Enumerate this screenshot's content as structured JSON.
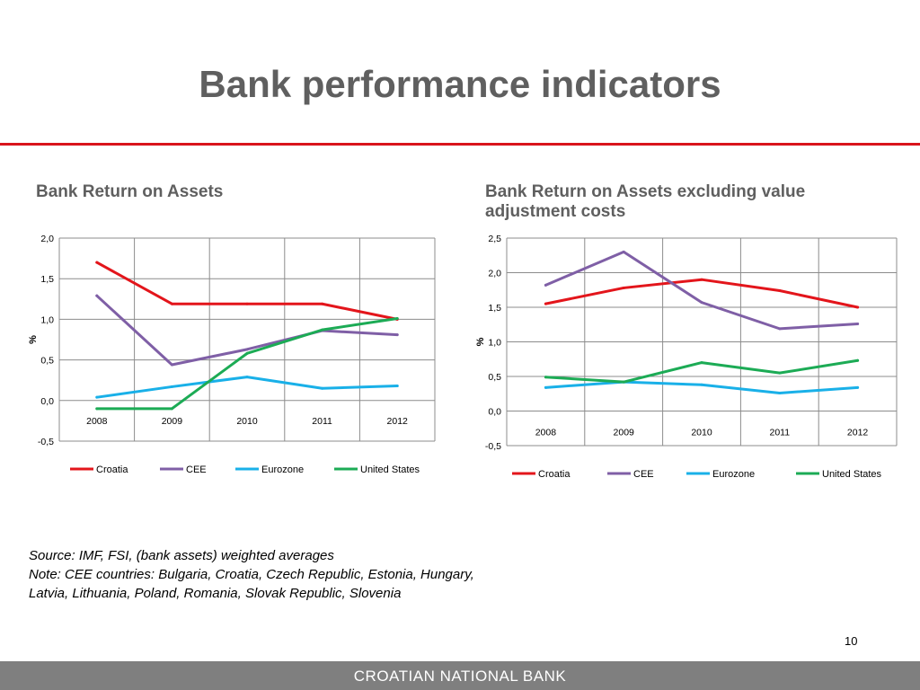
{
  "slide": {
    "title": "Bank performance indicators",
    "page_number": "10",
    "footer": "CROATIAN NATIONAL BANK",
    "notes": [
      "Source: IMF, FSI, (bank assets) weighted averages",
      "Note: CEE countries: Bulgaria, Croatia, Czech Republic, Estonia, Hungary, Latvia, Lithuania, Poland, Romania, Slovak Republic, Slovenia"
    ],
    "accent_color": "#d9141c"
  },
  "chart_data": [
    {
      "type": "line",
      "title": "Bank Return on Assets",
      "ylabel": "%",
      "xlabel": "",
      "ylim": [
        -0.5,
        2.0
      ],
      "yticks": [
        -0.5,
        0.0,
        0.5,
        1.0,
        1.5,
        2.0
      ],
      "ytick_labels": [
        "-0,5",
        "0,0",
        "0,5",
        "1,0",
        "1,5",
        "2,0"
      ],
      "categories": [
        "2008",
        "2009",
        "2010",
        "2011",
        "2012"
      ],
      "grid": true,
      "legend": "bottom",
      "series": [
        {
          "name": "Croatia",
          "color": "#e3151b",
          "values": [
            1.7,
            1.19,
            1.19,
            1.19,
            1.0
          ]
        },
        {
          "name": "CEE",
          "color": "#7f5fa6",
          "values": [
            1.29,
            0.44,
            0.63,
            0.86,
            0.81
          ]
        },
        {
          "name": "Eurozone",
          "color": "#19b0e8",
          "values": [
            0.04,
            0.17,
            0.29,
            0.15,
            0.18
          ]
        },
        {
          "name": "United States",
          "color": "#1cab55",
          "values": [
            -0.1,
            -0.1,
            0.58,
            0.87,
            1.01
          ]
        }
      ]
    },
    {
      "type": "line",
      "title": "Bank Return on Assets excluding value adjustment costs",
      "ylabel": "%",
      "xlabel": "",
      "ylim": [
        -0.5,
        2.5
      ],
      "yticks": [
        -0.5,
        0.0,
        0.5,
        1.0,
        1.5,
        2.0,
        2.5
      ],
      "ytick_labels": [
        "-0,5",
        "0,0",
        "0,5",
        "1,0",
        "1,5",
        "2,0",
        "2,5"
      ],
      "categories": [
        "2008",
        "2009",
        "2010",
        "2011",
        "2012"
      ],
      "grid": true,
      "legend": "bottom",
      "series": [
        {
          "name": "Croatia",
          "color": "#e3151b",
          "values": [
            1.55,
            1.78,
            1.9,
            1.74,
            1.5
          ]
        },
        {
          "name": "CEE",
          "color": "#7f5fa6",
          "values": [
            1.82,
            2.3,
            1.57,
            1.19,
            1.26
          ]
        },
        {
          "name": "Eurozone",
          "color": "#19b0e8",
          "values": [
            0.34,
            0.42,
            0.38,
            0.26,
            0.34
          ]
        },
        {
          "name": "United States",
          "color": "#1cab55",
          "values": [
            0.49,
            0.42,
            0.7,
            0.55,
            0.73
          ]
        }
      ]
    }
  ]
}
